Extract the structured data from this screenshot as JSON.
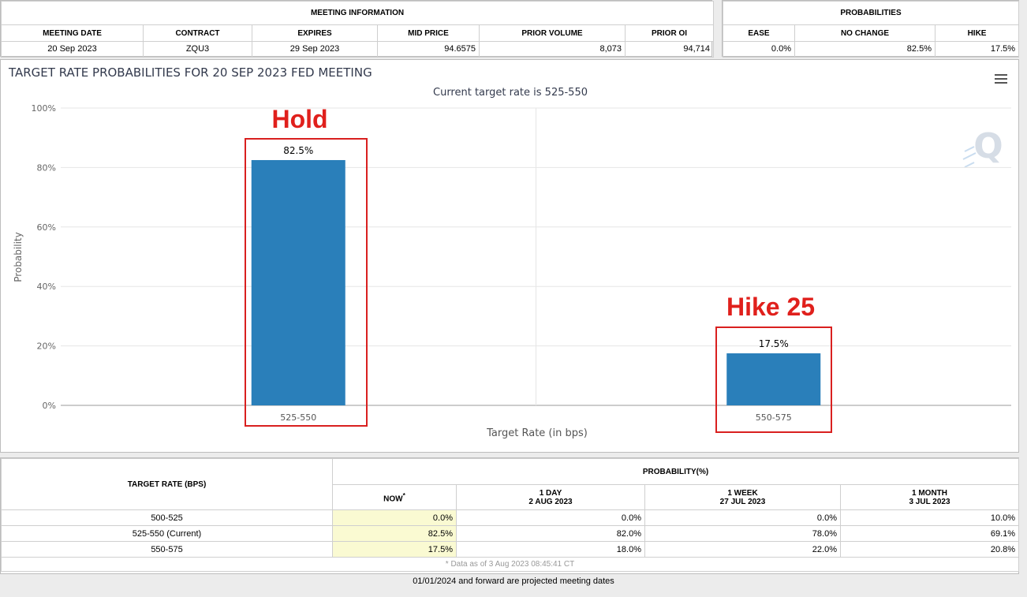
{
  "meeting_info": {
    "header": "MEETING INFORMATION",
    "columns": [
      "MEETING DATE",
      "CONTRACT",
      "EXPIRES",
      "MID PRICE",
      "PRIOR VOLUME",
      "PRIOR OI"
    ],
    "row": [
      "20 Sep 2023",
      "ZQU3",
      "29 Sep 2023",
      "94.6575",
      "8,073",
      "94,714"
    ]
  },
  "probabilities": {
    "header": "PROBABILITIES",
    "columns": [
      "EASE",
      "NO CHANGE",
      "HIKE"
    ],
    "row": [
      "0.0%",
      "82.5%",
      "17.5%"
    ]
  },
  "chart_panel": {
    "title": "TARGET RATE PROBABILITIES FOR 20 SEP 2023 FED MEETING",
    "subtitle": "Current target rate is 525-550",
    "watermark": "Q"
  },
  "annotations": {
    "hold": "Hold",
    "hike": "Hike 25"
  },
  "chart_data": {
    "type": "bar",
    "title": "TARGET RATE PROBABILITIES FOR 20 SEP 2023 FED MEETING",
    "subtitle": "Current target rate is 525-550",
    "categories": [
      "525-550",
      "550-575"
    ],
    "values": [
      82.5,
      17.5
    ],
    "value_labels": [
      "82.5%",
      "17.5%"
    ],
    "xlabel": "Target Rate (in bps)",
    "ylabel": "Probability",
    "ylim": [
      0,
      100
    ],
    "yticks": [
      0,
      20,
      40,
      60,
      80,
      100
    ],
    "ytick_labels": [
      "0%",
      "20%",
      "40%",
      "60%",
      "80%",
      "100%"
    ],
    "grid": true,
    "bar_color": "#2a7fba"
  },
  "prob_table": {
    "target_header": "TARGET RATE (BPS)",
    "prob_header": "PROBABILITY(%)",
    "now_label": "NOW",
    "now_mark": "*",
    "cols": [
      {
        "l1": "1 DAY",
        "l2": "2 AUG 2023"
      },
      {
        "l1": "1 WEEK",
        "l2": "27 JUL 2023"
      },
      {
        "l1": "1 MONTH",
        "l2": "3 JUL 2023"
      }
    ],
    "rows": [
      {
        "rate": "500-525",
        "now": "0.0%",
        "d1": "0.0%",
        "w1": "0.0%",
        "m1": "10.0%"
      },
      {
        "rate": "525-550 (Current)",
        "now": "82.5%",
        "d1": "82.0%",
        "w1": "78.0%",
        "m1": "69.1%"
      },
      {
        "rate": "550-575",
        "now": "17.5%",
        "d1": "18.0%",
        "w1": "22.0%",
        "m1": "20.8%"
      }
    ],
    "data_note": "* Data as of 3 Aug 2023 08:45:41 CT"
  },
  "footer": "01/01/2024 and forward are projected meeting dates"
}
